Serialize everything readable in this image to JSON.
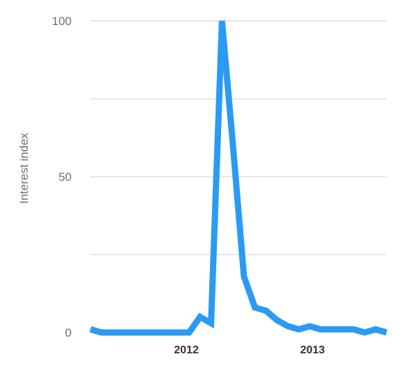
{
  "chart_data": {
    "type": "line",
    "title": "",
    "xlabel": "",
    "ylabel": "Interest index",
    "ylim": [
      0,
      100
    ],
    "y_ticks": [
      0,
      50,
      100
    ],
    "y_tick_labels": [
      "0",
      "50",
      "100"
    ],
    "x_tick_labels": [
      "2012",
      "2013"
    ],
    "x_tick_positions": [
      8.75,
      20.25
    ],
    "gridlines": [
      25,
      50,
      75,
      100
    ],
    "grid": true,
    "legend": "none",
    "series": [
      {
        "color": "#2b9af3",
        "x": [
          0,
          1,
          2,
          3,
          4,
          5,
          6,
          7,
          8,
          9,
          10,
          11,
          12,
          13,
          14,
          15,
          16,
          17,
          18,
          19,
          20,
          21,
          22,
          23,
          24,
          25,
          26,
          27
        ],
        "values": [
          1,
          0,
          0,
          0,
          0,
          0,
          0,
          0,
          0,
          0,
          5,
          3,
          100,
          60,
          18,
          8,
          7,
          4,
          2,
          1,
          2,
          1,
          1,
          1,
          1,
          0,
          1,
          0
        ]
      }
    ]
  }
}
